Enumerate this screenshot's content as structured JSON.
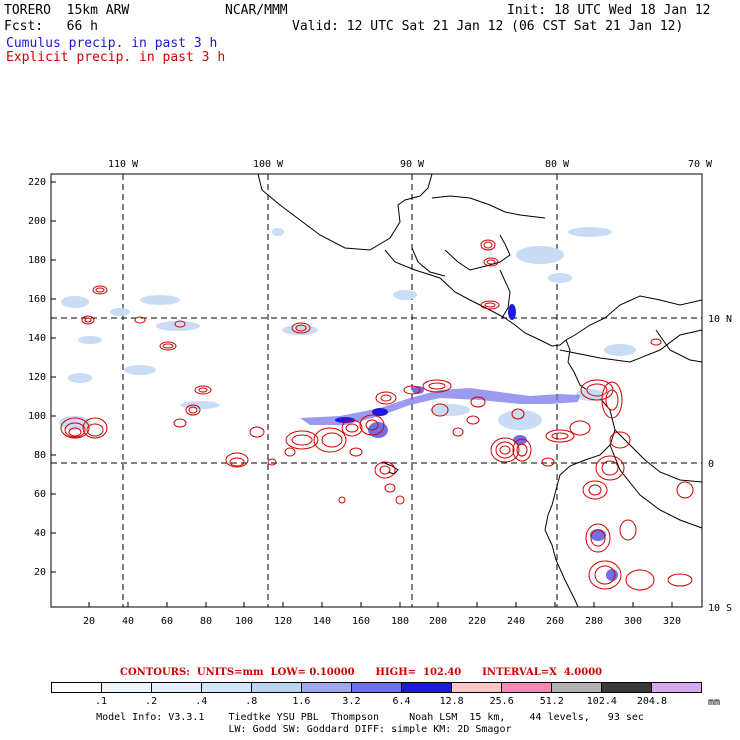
{
  "header": {
    "model": "TORERO  15km ARW",
    "org": "NCAR/MMM",
    "init": "Init: 18 UTC Wed 18 Jan 12",
    "fcst": "Fcst:   66 h",
    "valid": "Valid: 12 UTC Sat 21 Jan 12 (06 CST Sat 21 Jan 12)",
    "line_cumulus": "Cumulus precip. in past 3 h",
    "line_explicit": "Explicit precip. in past 3 h"
  },
  "map": {
    "lon_labels": [
      "110 W",
      "100 W",
      "90 W",
      "80 W",
      "70 W"
    ],
    "lat_labels": [
      "10 N",
      "0",
      "10 S"
    ],
    "y_ticks": [
      "220",
      "200",
      "180",
      "160",
      "140",
      "120",
      "100",
      "80",
      "60",
      "40",
      "20"
    ],
    "x_ticks": [
      "20",
      "40",
      "60",
      "80",
      "100",
      "120",
      "140",
      "160",
      "180",
      "200",
      "220",
      "240",
      "260",
      "280",
      "300",
      "320"
    ]
  },
  "contours_text": "CONTOURS:  UNITS=mm  LOW= 0.10000      HIGH=  102.40      INTERVAL=X  4.0000",
  "legend": {
    "colors": [
      "#ffffff",
      "#f0f6fc",
      "#e3f0fb",
      "#d2e8f8",
      "#b9d6f2",
      "#a0a8ee",
      "#6f6fe8",
      "#1a1ae0",
      "#f7c6c6",
      "#f48ab4",
      "#b3b3b3",
      "#3a3a3a",
      "#d9a6f2"
    ],
    "labels": [
      ".1",
      ".2",
      ".4",
      ".8",
      "1.6",
      "3.2",
      "6.4",
      "12.8",
      "25.6",
      "51.2",
      "102.4",
      "204.8"
    ],
    "unit": "mm"
  },
  "footer": {
    "line1": "Model Info: V3.3.1    Tiedtke YSU PBL  Thompson     Noah LSM  15 km,    44 levels,   93 sec",
    "line2": "LW: Godd SW: Goddard DIFF: simple KM: 2D Smagor"
  }
}
